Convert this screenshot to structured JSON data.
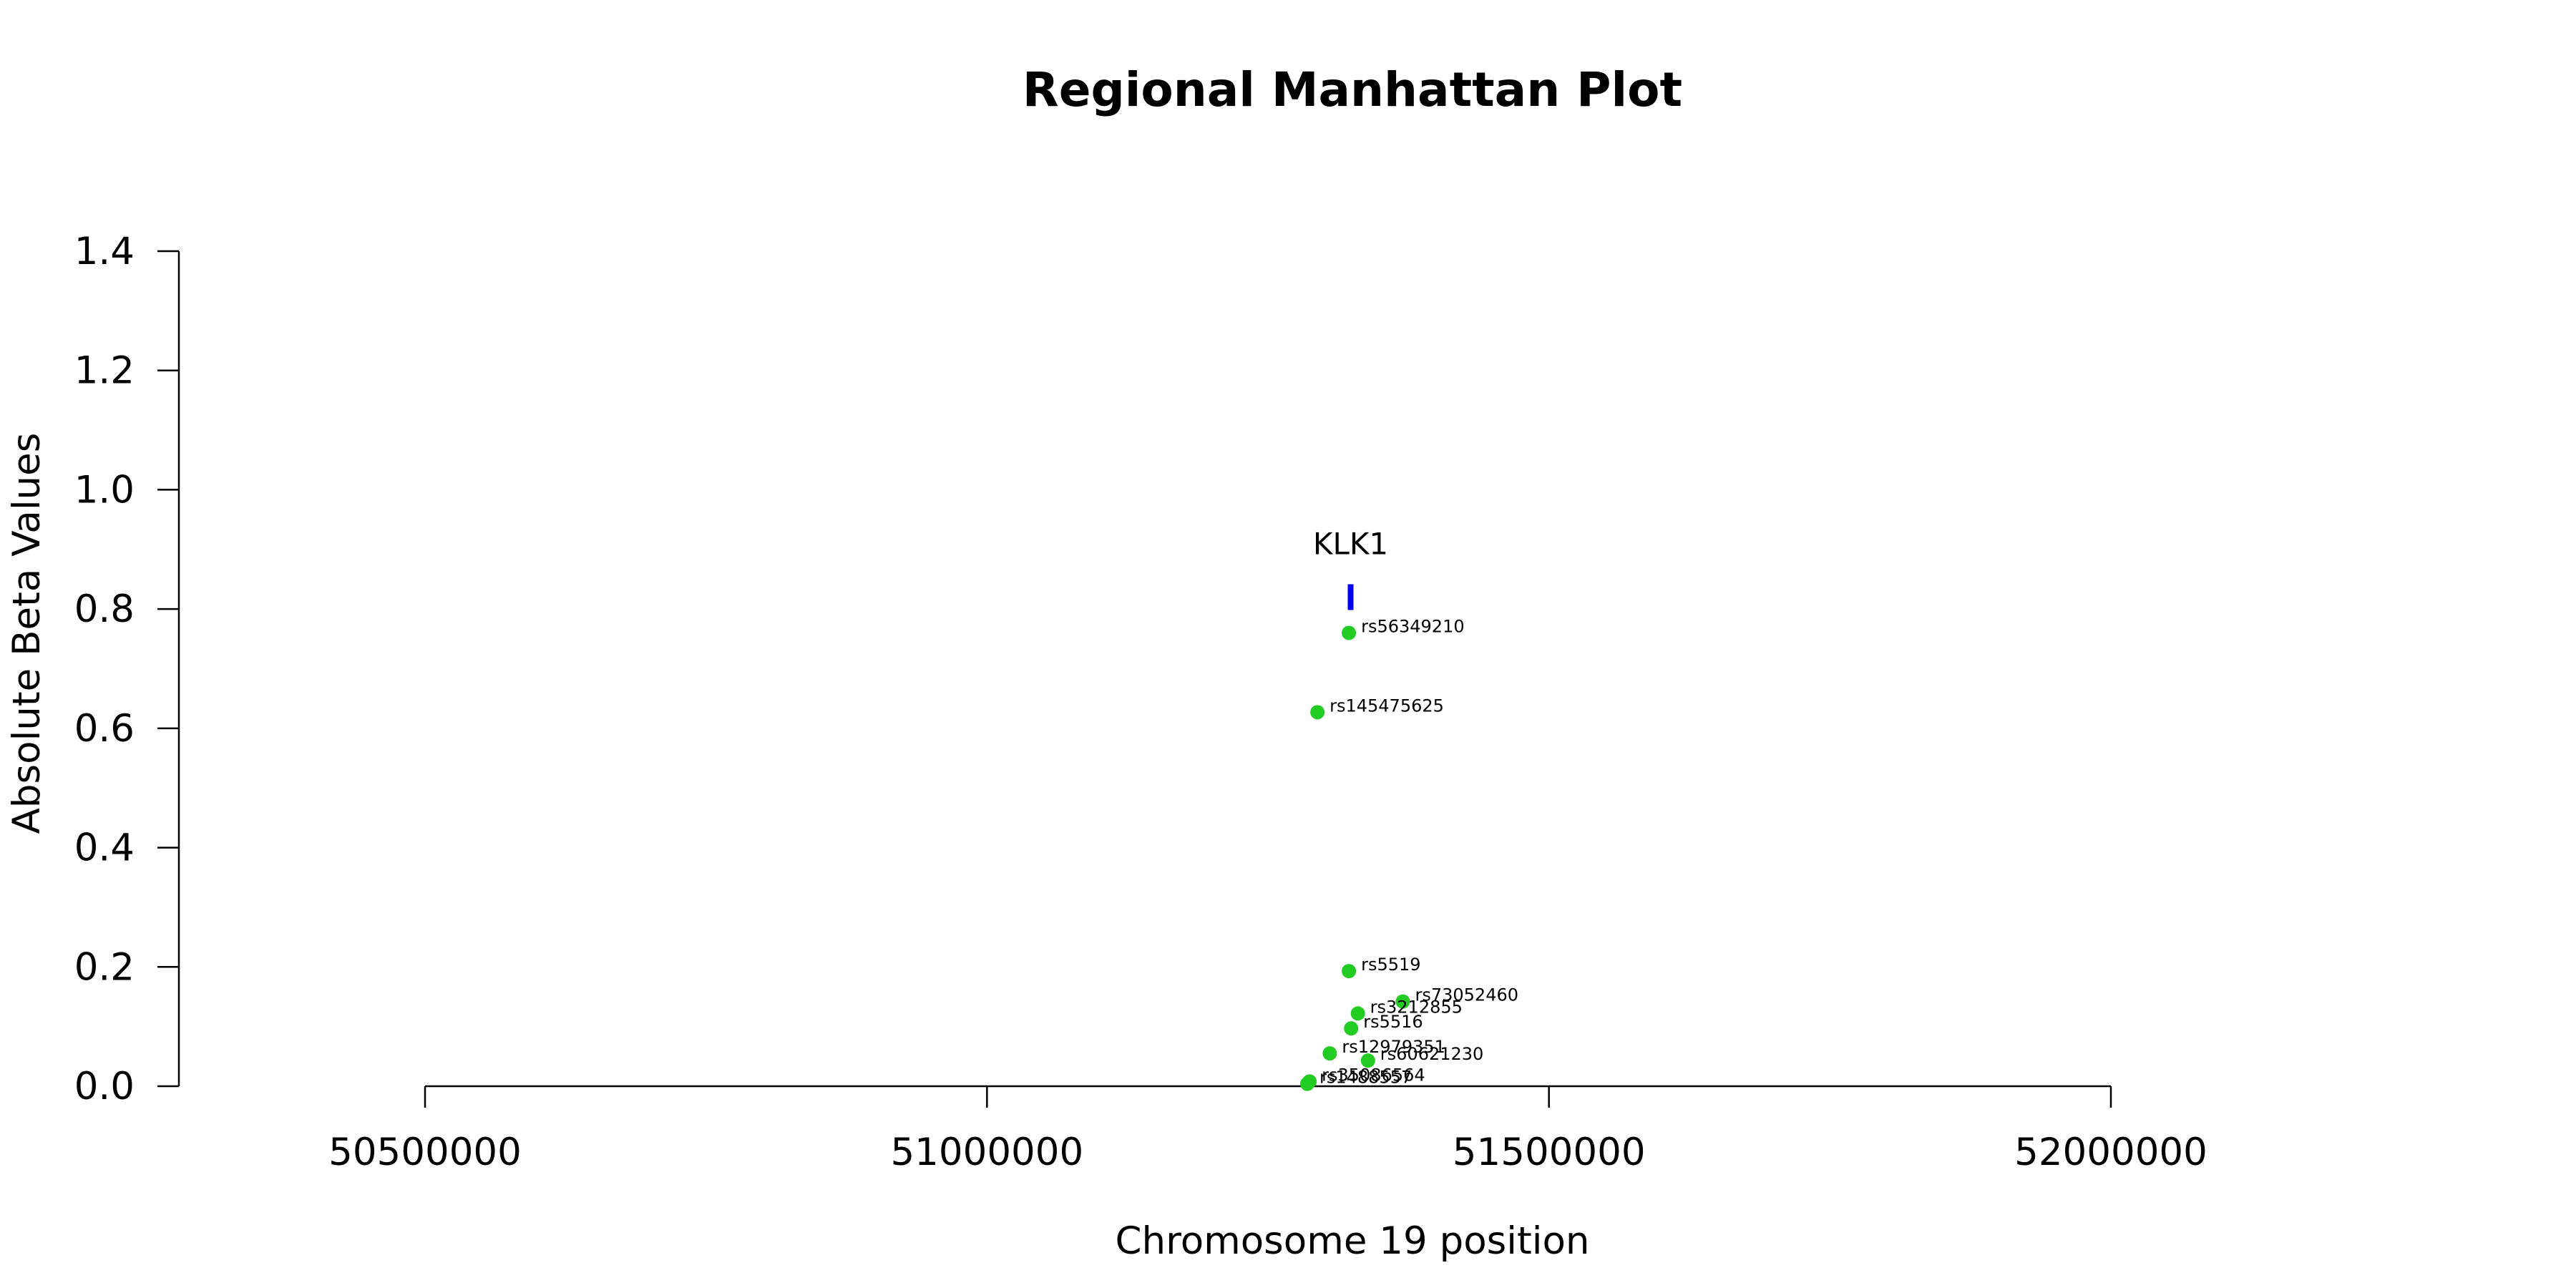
{
  "chart_data": {
    "type": "scatter",
    "title": "Regional Manhattan Plot",
    "xlabel": "Chromosome 19 position",
    "ylabel": "Absolute Beta Values",
    "xlim": [
      50500000,
      52000000
    ],
    "ylim": [
      0.0,
      1.4
    ],
    "x_ticks": [
      50500000,
      51000000,
      51500000,
      52000000
    ],
    "x_tick_labels": [
      "50500000",
      "51000000",
      "51500000",
      "52000000"
    ],
    "y_ticks": [
      0.0,
      0.2,
      0.4,
      0.6,
      0.8,
      1.0,
      1.2,
      1.4
    ],
    "y_tick_labels": [
      "0.0",
      "0.2",
      "0.4",
      "0.6",
      "0.8",
      "1.0",
      "1.2",
      "1.4"
    ],
    "grid": false,
    "point_color": "#22cc22",
    "gene_color": "#0000ee",
    "points": [
      {
        "label": "rs56349210",
        "x": 51322000,
        "y": 0.76
      },
      {
        "label": "rs145475625",
        "x": 51294000,
        "y": 0.627
      },
      {
        "label": "rs5519",
        "x": 51322000,
        "y": 0.193
      },
      {
        "label": "rs73052460",
        "x": 51370000,
        "y": 0.142
      },
      {
        "label": "rs3212855",
        "x": 51330000,
        "y": 0.122
      },
      {
        "label": "rs5516",
        "x": 51324000,
        "y": 0.097
      },
      {
        "label": "rs12979351",
        "x": 51305000,
        "y": 0.055
      },
      {
        "label": "rs60621230",
        "x": 51339000,
        "y": 0.043
      },
      {
        "label": "rs35086564",
        "x": 51287000,
        "y": 0.008
      },
      {
        "label": "rs1488557",
        "x": 51285000,
        "y": 0.004
      }
    ],
    "genes": [
      {
        "name": "KLK1",
        "start": 51321000,
        "end": 51326000,
        "y": 0.82
      }
    ]
  }
}
